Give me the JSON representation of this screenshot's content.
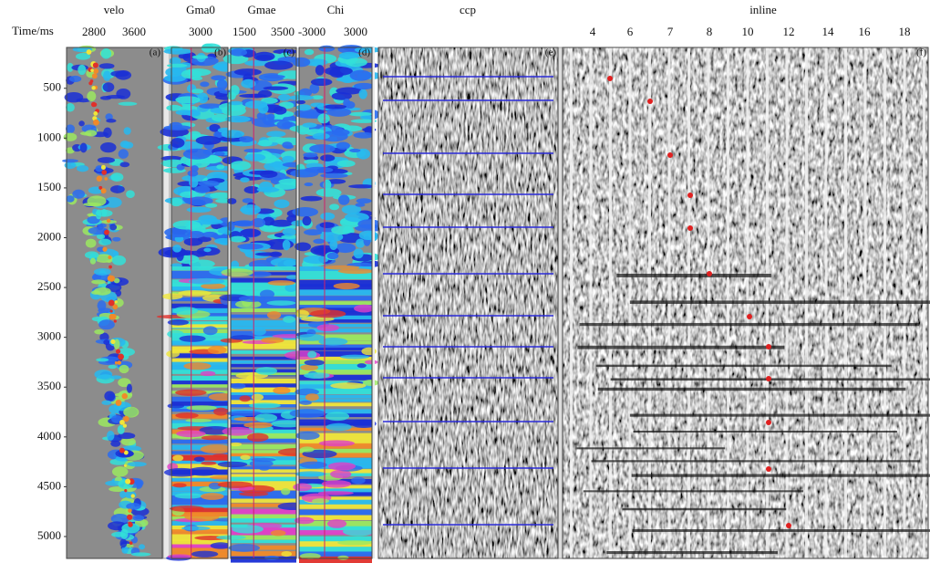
{
  "time_axis": {
    "label": "Time/ms",
    "range": [
      90,
      5220
    ],
    "ticks": [
      500,
      1000,
      1500,
      2000,
      2500,
      3000,
      3500,
      4000,
      4500,
      5000
    ]
  },
  "panels": [
    {
      "title": "velo",
      "ticks": [
        "2800",
        "3600"
      ],
      "tag": "(a)"
    },
    {
      "title": "Gma0",
      "ticks": [
        "3000"
      ],
      "tag": "(b)"
    },
    {
      "title": "Gmae",
      "ticks": [
        "1500",
        "3500"
      ],
      "tag": "(c)"
    },
    {
      "title": "Chi",
      "ticks": [
        "-3000",
        "3000"
      ],
      "tag": "(d)"
    },
    {
      "title": "ccp",
      "ticks": [],
      "tag": "(e)"
    },
    {
      "title": "inline",
      "ticks": [
        "4",
        "6",
        "7",
        "8",
        "10",
        "12",
        "14",
        "16",
        "18"
      ],
      "tag": "(f)"
    }
  ]
}
